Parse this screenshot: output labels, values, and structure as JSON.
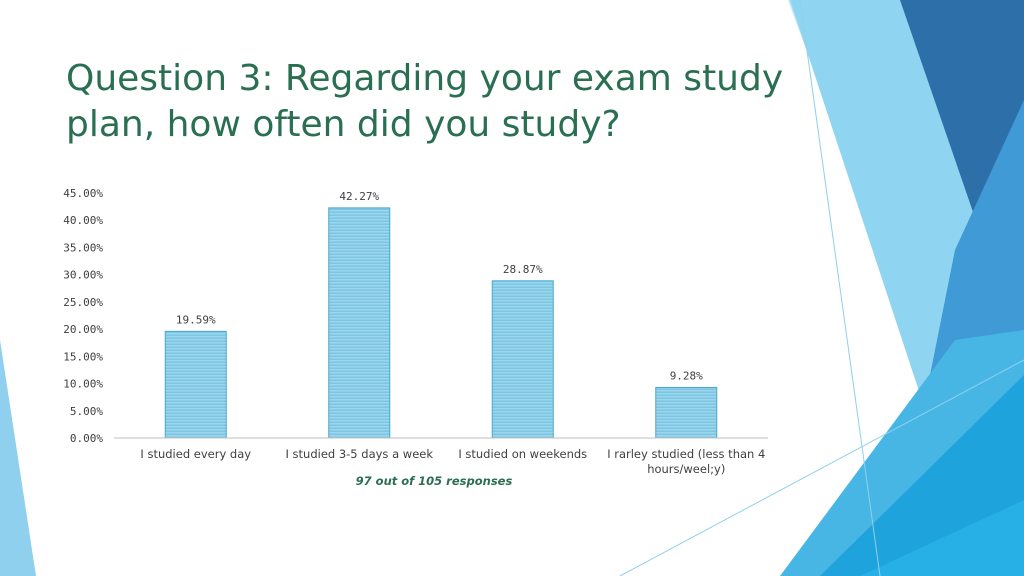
{
  "slide": {
    "title": "Question 3: Regarding your exam study plan, how often did you study?",
    "note": "97 out of 105 responses",
    "colors": {
      "title": "#2a6f52",
      "bar_fill": "#7fcbe6",
      "bar_edge": "#4aa8cc",
      "axis": "#bfbfbf"
    }
  },
  "chart_data": {
    "type": "bar",
    "categories": [
      "I studied every day",
      "I studied 3-5 days a week",
      "I studied on weekends",
      "I rarley studied (less than 4 hours/weel;y)"
    ],
    "category_lines": [
      [
        "I studied every day"
      ],
      [
        "I studied 3-5 days a week"
      ],
      [
        "I studied on weekends"
      ],
      [
        "I rarley studied (less than 4",
        "hours/weel;y)"
      ]
    ],
    "values": [
      19.59,
      42.27,
      28.87,
      9.28
    ],
    "data_labels": [
      "19.59%",
      "42.27%",
      "28.87%",
      "9.28%"
    ],
    "ylim": [
      0,
      45
    ],
    "yticks": [
      0,
      5,
      10,
      15,
      20,
      25,
      30,
      35,
      40,
      45
    ],
    "ytick_labels": [
      "0.00%",
      "5.00%",
      "10.00%",
      "15.00%",
      "20.00%",
      "25.00%",
      "30.00%",
      "35.00%",
      "40.00%",
      "45.00%"
    ],
    "grid": false,
    "legend": "none"
  }
}
